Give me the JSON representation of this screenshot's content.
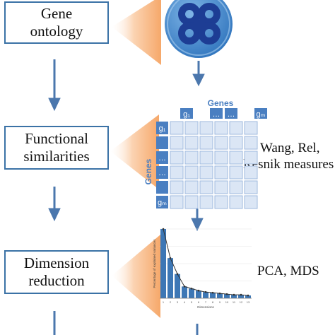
{
  "stages": {
    "gene_ontology": {
      "line1": "Gene",
      "line2": "ontology"
    },
    "functional_similarities": {
      "line1": "Functional",
      "line2": "similarities"
    },
    "dimension_reduction": {
      "line1": "Dimension",
      "line2": "reduction"
    }
  },
  "matrix": {
    "col_header": "Genes",
    "row_header": "Genes",
    "col_labels": [
      "g₁",
      "…",
      "…",
      "gₘ"
    ],
    "row_labels": [
      "g₁",
      "…",
      "…",
      "gₘ"
    ]
  },
  "methods": {
    "similarity": [
      "Wang, Rel,",
      "Resnik measures"
    ],
    "reduction": "PCA, MDS"
  },
  "scree": {
    "type": "bar",
    "values": [
      100,
      58,
      35,
      17,
      14,
      11,
      9,
      8,
      7,
      6,
      5,
      5,
      4
    ],
    "ylabel": "Percentage of explained variances",
    "xlabel": "Dimensions"
  },
  "colors": {
    "box_border": "#3b72a6",
    "arrow": "#4b77ad",
    "fan": "#f6a86a",
    "matrix_header": "#4a7fc1",
    "matrix_cell": "#dbe6f5",
    "bar": "#3d77b5",
    "logo_ring": "#3c84c8",
    "logo_dark": "#1d3d94"
  }
}
